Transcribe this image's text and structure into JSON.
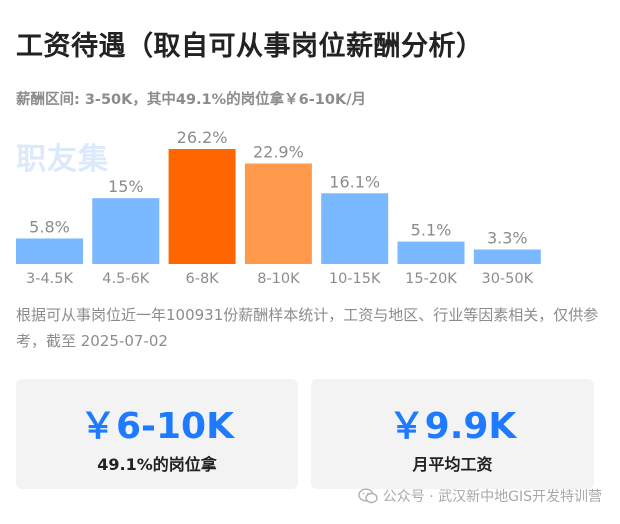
{
  "title": "工资待遇（取自可从事岗位薪酬分析）",
  "subtitle": "薪酬区间: 3-50K，其中49.1%的岗位拿￥6-10K/月",
  "watermark": "职友集",
  "chart_data": {
    "type": "bar",
    "categories": [
      "3-4.5K",
      "4.5-6K",
      "6-8K",
      "8-10K",
      "10-15K",
      "15-20K",
      "30-50K"
    ],
    "values": [
      5.8,
      15,
      26.2,
      22.9,
      16.1,
      5.1,
      3.3
    ],
    "value_labels": [
      "5.8%",
      "15%",
      "26.2%",
      "22.9%",
      "16.1%",
      "5.1%",
      "3.3%"
    ],
    "colors": [
      "#7ab8ff",
      "#7ab8ff",
      "#ff6600",
      "#ff9a4d",
      "#7ab8ff",
      "#7ab8ff",
      "#7ab8ff"
    ],
    "ylim": [
      0,
      26.2
    ]
  },
  "note": "根据可从事岗位近一年100931份薪酬样本统计，工资与地区、行业等因素相关，仅供参考，截至 2025-07-02",
  "cards": [
    {
      "value": "￥6-10K",
      "label": "49.1%的岗位拿"
    },
    {
      "value": "￥9.9K",
      "label": "月平均工资"
    }
  ],
  "footer": {
    "icon": "wechat-icon",
    "text": "公众号 · 武汉新中地GIS开发特训营"
  }
}
